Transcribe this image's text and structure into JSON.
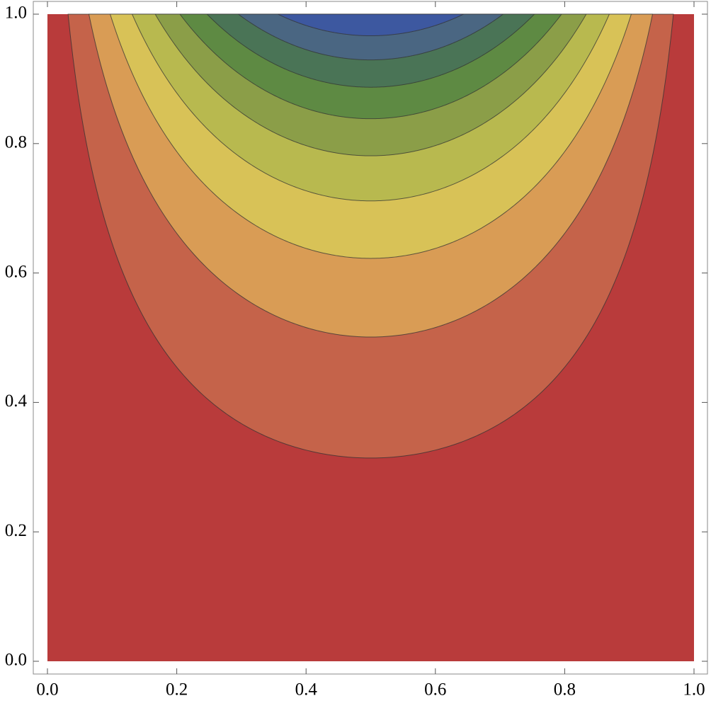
{
  "chart_data": {
    "type": "contour",
    "levels": [
      0.1,
      0.2,
      0.3,
      0.4,
      0.5,
      0.6,
      0.7,
      0.8,
      0.9
    ],
    "colors": [
      "#b93b3b",
      "#c5634a",
      "#d99c55",
      "#d8c257",
      "#b8b94f",
      "#8b9e48",
      "#5e8a43",
      "#4a7456",
      "#4a6682",
      "#3d58a0"
    ],
    "xlim": [
      0,
      1
    ],
    "ylim": [
      0,
      1
    ],
    "xticks": [
      {
        "value": 0,
        "label": "0.0"
      },
      {
        "value": 0.2,
        "label": "0.2"
      },
      {
        "value": 0.4,
        "label": "0.4"
      },
      {
        "value": 0.6,
        "label": "0.6"
      },
      {
        "value": 0.8,
        "label": "0.8"
      },
      {
        "value": 1,
        "label": "1.0"
      }
    ],
    "yticks": [
      {
        "value": 0,
        "label": "0.0"
      },
      {
        "value": 0.2,
        "label": "0.2"
      },
      {
        "value": 0.4,
        "label": "0.4"
      },
      {
        "value": 0.6,
        "label": "0.6"
      },
      {
        "value": 0.8,
        "label": "0.8"
      },
      {
        "value": 1,
        "label": "1.0"
      }
    ]
  }
}
